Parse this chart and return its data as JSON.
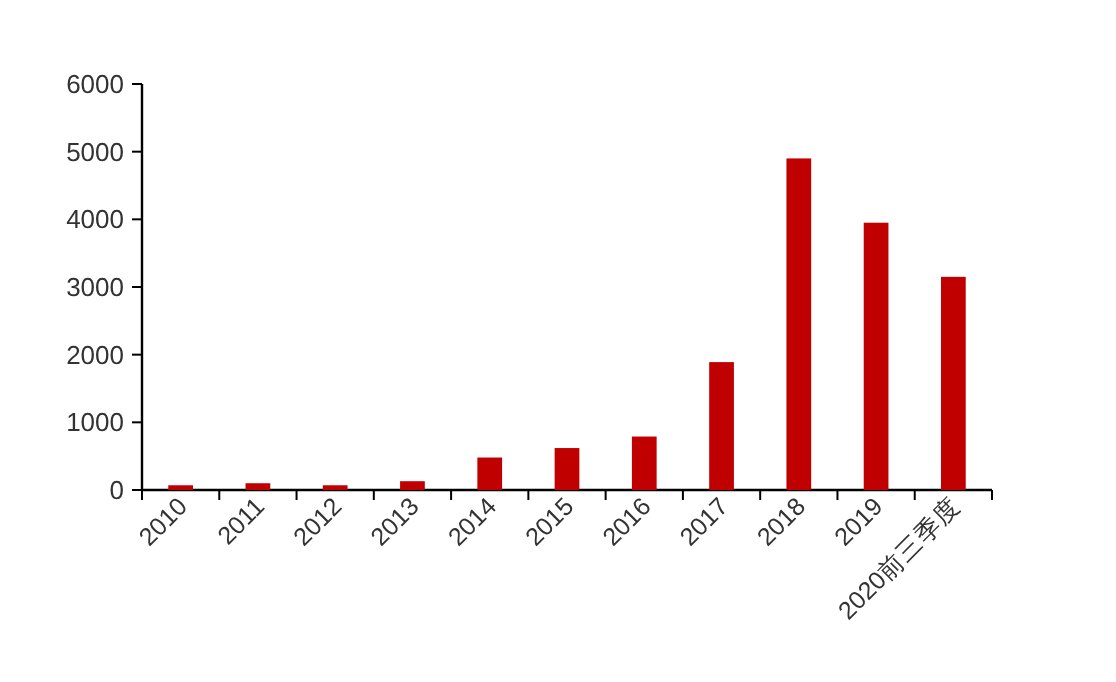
{
  "chart_data": {
    "type": "bar",
    "categories": [
      "2010",
      "2011",
      "2012",
      "2013",
      "2014",
      "2015",
      "2016",
      "2017",
      "2018",
      "2019",
      "2020前三季度"
    ],
    "values": [
      70,
      100,
      70,
      130,
      480,
      620,
      790,
      1890,
      4900,
      3950,
      3150
    ],
    "color": "#c00000",
    "ylim": [
      0,
      6000
    ],
    "yticks": [
      0,
      1000,
      2000,
      3000,
      4000,
      5000,
      6000
    ]
  }
}
